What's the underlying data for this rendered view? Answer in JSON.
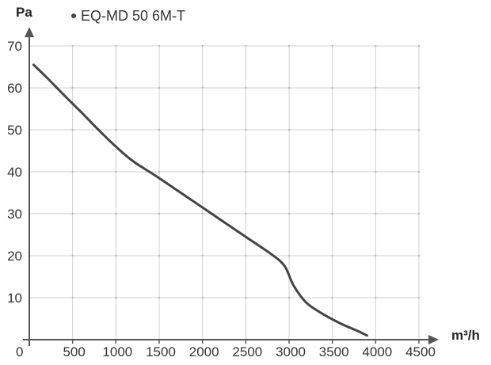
{
  "chart_data": {
    "type": "line",
    "title": "",
    "xlabel": "m³/h",
    "ylabel": "Pa",
    "xlim": [
      0,
      4500
    ],
    "ylim": [
      0,
      70
    ],
    "x_ticks": [
      500,
      1000,
      1500,
      2000,
      2500,
      3000,
      3500,
      4000,
      4500
    ],
    "y_ticks": [
      10,
      20,
      30,
      40,
      50,
      60,
      70
    ],
    "origin_label": "0",
    "grid": true,
    "legend_position": "top-left",
    "series": [
      {
        "name": "EQ-MD 50 6M-T",
        "color": "#444444",
        "points": [
          [
            50,
            65.5
          ],
          [
            200,
            62.5
          ],
          [
            400,
            58.3
          ],
          [
            600,
            54.2
          ],
          [
            800,
            50.0
          ],
          [
            1000,
            46.0
          ],
          [
            1200,
            42.5
          ],
          [
            1500,
            38.5
          ],
          [
            2000,
            31.5
          ],
          [
            2500,
            24.5
          ],
          [
            2800,
            20.3
          ],
          [
            2950,
            17.5
          ],
          [
            3050,
            13.0
          ],
          [
            3200,
            8.8
          ],
          [
            3400,
            6.0
          ],
          [
            3600,
            3.8
          ],
          [
            3800,
            2.0
          ],
          [
            3900,
            1.0
          ]
        ]
      }
    ],
    "colors": {
      "axis": "#555555",
      "grid": "#d0d0d0",
      "line": "#444444"
    }
  }
}
